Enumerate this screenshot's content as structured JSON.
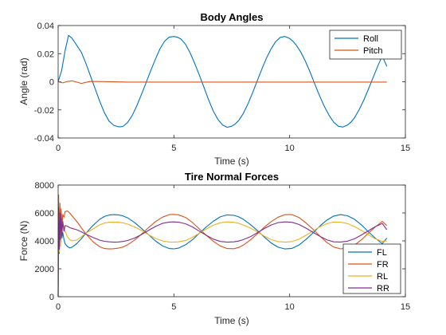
{
  "chart_data": [
    {
      "type": "line",
      "title": "Body Angles",
      "xlabel": "Time (s)",
      "ylabel": "Angle (rad)",
      "xlim": [
        0,
        15
      ],
      "ylim": [
        -0.04,
        0.04
      ],
      "xticks": [
        "0",
        "5",
        "10",
        "15"
      ],
      "yticks": [
        "-0.04",
        "-0.02",
        "0",
        "0.02",
        "0.04"
      ],
      "grid": false,
      "legend": "top-right",
      "series": [
        {
          "name": "Roll",
          "color": "#0072BD",
          "x": [
            0,
            0.15,
            0.3,
            0.45,
            0.6,
            0.8,
            1.0,
            1.2,
            1.4,
            1.6,
            1.8,
            2.0,
            2.2,
            2.4,
            2.6,
            2.7,
            2.8,
            3.0,
            3.2,
            3.4,
            3.6,
            3.8,
            4.0,
            4.2,
            4.4,
            4.6,
            4.8,
            5.0,
            5.15,
            5.3,
            5.5,
            5.7,
            5.9,
            6.1,
            6.3,
            6.5,
            6.7,
            6.9,
            7.1,
            7.3,
            7.5,
            7.65,
            7.8,
            8.0,
            8.2,
            8.4,
            8.6,
            8.8,
            9.0,
            9.2,
            9.4,
            9.6,
            9.8,
            10.0,
            10.15,
            10.3,
            10.5,
            10.7,
            10.9,
            11.1,
            11.3,
            11.5,
            11.7,
            11.9,
            12.1,
            12.3,
            12.5,
            12.65,
            12.8,
            13.0,
            13.2,
            13.4,
            13.6,
            13.8,
            14.0,
            14.2
          ],
          "y": [
            0,
            0.008,
            0.022,
            0.033,
            0.031,
            0.026,
            0.021,
            0.013,
            0.004,
            -0.005,
            -0.014,
            -0.022,
            -0.028,
            -0.031,
            -0.032,
            -0.032,
            -0.0318,
            -0.029,
            -0.024,
            -0.017,
            -0.009,
            -0.0005,
            0.008,
            0.016,
            0.0235,
            0.0289,
            0.0317,
            0.0322,
            0.0317,
            0.0304,
            0.0267,
            0.0206,
            0.013,
            0.0047,
            -0.004,
            -0.0128,
            -0.0207,
            -0.0268,
            -0.0307,
            -0.0324,
            -0.0316,
            -0.03,
            -0.0276,
            -0.0225,
            -0.0158,
            -0.0078,
            0.0007,
            0.009,
            0.0169,
            0.0234,
            0.0286,
            0.0316,
            0.0322,
            0.0308,
            0.0287,
            0.0257,
            0.0206,
            0.0139,
            0.0063,
            -0.0021,
            -0.0103,
            -0.0176,
            -0.0238,
            -0.0287,
            -0.0316,
            -0.0322,
            -0.0308,
            -0.0287,
            -0.0256,
            -0.0199,
            -0.0131,
            -0.0054,
            0.0027,
            0.0109,
            0.0183,
            0.011
          ]
        },
        {
          "name": "Pitch",
          "color": "#D95319",
          "x": [
            0,
            0.2,
            0.4,
            0.6,
            0.8,
            1.0,
            1.2,
            1.4,
            2.0,
            3.0,
            14.2
          ],
          "y": [
            0,
            -0.0008,
            0.0002,
            0.0006,
            -0.0002,
            -0.0012,
            -0.0004,
            0.0002,
            0.0001,
            -0.0002,
            -0.0002
          ]
        }
      ]
    },
    {
      "type": "line",
      "title": "Tire Normal Forces",
      "xlabel": "Time (s)",
      "ylabel": "Force (N)",
      "xlim": [
        0,
        15
      ],
      "ylim": [
        0,
        8000
      ],
      "xticks": [
        "0",
        "5",
        "10",
        "15"
      ],
      "yticks": [
        "0",
        "2000",
        "4000",
        "6000",
        "8000"
      ],
      "grid": false,
      "legend": "bottom-right",
      "series": [
        {
          "name": "FL",
          "color": "#0072BD",
          "x": [
            0,
            0.02,
            0.05,
            0.08,
            0.1,
            0.13,
            0.16,
            0.2,
            0.25,
            0.3,
            0.4,
            0.5,
            0.6,
            0.8,
            1.0,
            1.2,
            1.5,
            1.8,
            2.0,
            2.2,
            2.4,
            2.6,
            2.8,
            3.0,
            3.3,
            3.6,
            3.9,
            4.2,
            4.5,
            4.8,
            5.0,
            5.2,
            5.5,
            5.8,
            6.1,
            6.4,
            6.7,
            7.0,
            7.3,
            7.6,
            7.8,
            8.0,
            8.3,
            8.6,
            8.9,
            9.2,
            9.5,
            9.8,
            10.1,
            10.4,
            10.7,
            11.0,
            11.3,
            11.6,
            11.9,
            12.2,
            12.5,
            12.8,
            13.1,
            13.4,
            13.7,
            14.0,
            14.2
          ],
          "y": [
            0,
            6200,
            3100,
            5600,
            3700,
            5200,
            4200,
            4600,
            4100,
            3800,
            3600,
            3500,
            3550,
            3800,
            4150,
            4550,
            5100,
            5550,
            5750,
            5850,
            5880,
            5860,
            5790,
            5650,
            5320,
            4900,
            4450,
            4000,
            3650,
            3450,
            3430,
            3480,
            3720,
            4080,
            4550,
            5000,
            5400,
            5720,
            5860,
            5830,
            5720,
            5550,
            5180,
            4750,
            4280,
            3850,
            3550,
            3420,
            3460,
            3700,
            4100,
            4550,
            5050,
            5480,
            5780,
            5880,
            5800,
            5550,
            5150,
            4650,
            4200,
            3800,
            4200
          ]
        },
        {
          "name": "FR",
          "color": "#D95319",
          "x": [
            0,
            0.02,
            0.05,
            0.08,
            0.1,
            0.13,
            0.16,
            0.2,
            0.25,
            0.3,
            0.4,
            0.5,
            0.6,
            0.8,
            1.0,
            1.2,
            1.5,
            1.8,
            2.0,
            2.2,
            2.4,
            2.6,
            2.8,
            3.0,
            3.3,
            3.6,
            3.9,
            4.2,
            4.5,
            4.8,
            5.0,
            5.2,
            5.5,
            5.8,
            6.1,
            6.4,
            6.7,
            7.0,
            7.3,
            7.6,
            7.8,
            8.0,
            8.3,
            8.6,
            8.9,
            9.2,
            9.5,
            9.8,
            10.1,
            10.4,
            10.7,
            11.0,
            11.3,
            11.6,
            11.9,
            12.2,
            12.5,
            12.8,
            13.1,
            13.4,
            13.7,
            14.0,
            14.2
          ],
          "y": [
            0,
            7300,
            3600,
            6700,
            4300,
            6300,
            5000,
            5900,
            5700,
            6100,
            6150,
            6000,
            5800,
            5400,
            4950,
            4500,
            3950,
            3580,
            3450,
            3420,
            3440,
            3480,
            3560,
            3720,
            4050,
            4480,
            4950,
            5380,
            5700,
            5880,
            5900,
            5870,
            5680,
            5320,
            4850,
            4400,
            3980,
            3640,
            3450,
            3440,
            3530,
            3700,
            4060,
            4500,
            4980,
            5380,
            5700,
            5880,
            5880,
            5680,
            5300,
            4850,
            4350,
            3900,
            3560,
            3430,
            3480,
            3700,
            4080,
            4550,
            5000,
            5400,
            5100
          ]
        },
        {
          "name": "RL",
          "color": "#EDB120",
          "x": [
            0,
            0.02,
            0.05,
            0.08,
            0.1,
            0.13,
            0.16,
            0.2,
            0.25,
            0.3,
            0.4,
            0.5,
            0.6,
            0.8,
            1.0,
            1.2,
            1.5,
            1.8,
            2.0,
            2.2,
            2.4,
            2.6,
            2.8,
            3.0,
            3.3,
            3.6,
            3.9,
            4.2,
            4.5,
            4.8,
            5.0,
            5.2,
            5.5,
            5.8,
            6.1,
            6.4,
            6.7,
            7.0,
            7.3,
            7.6,
            7.8,
            8.0,
            8.3,
            8.6,
            8.9,
            9.2,
            9.5,
            9.8,
            10.1,
            10.4,
            10.7,
            11.0,
            11.3,
            11.6,
            11.9,
            12.2,
            12.5,
            12.8,
            13.1,
            13.4,
            13.7,
            14.0,
            14.2
          ],
          "y": [
            0,
            5400,
            3200,
            5800,
            3600,
            5700,
            4800,
            5300,
            5000,
            4700,
            4300,
            4100,
            4000,
            4050,
            4300,
            4550,
            4850,
            5150,
            5280,
            5330,
            5350,
            5340,
            5290,
            5200,
            5000,
            4750,
            4450,
            4180,
            4000,
            3920,
            3910,
            3930,
            4020,
            4250,
            4550,
            4850,
            5120,
            5300,
            5360,
            5330,
            5260,
            5140,
            4920,
            4650,
            4350,
            4090,
            3950,
            3910,
            3950,
            4120,
            4400,
            4700,
            5000,
            5230,
            5350,
            5340,
            5240,
            5030,
            4750,
            4440,
            4150,
            3960,
            4000
          ]
        },
        {
          "name": "RR",
          "color": "#7E2F8E",
          "x": [
            0,
            0.02,
            0.05,
            0.08,
            0.1,
            0.13,
            0.16,
            0.2,
            0.25,
            0.3,
            0.4,
            0.5,
            0.6,
            0.8,
            1.0,
            1.2,
            1.5,
            1.8,
            2.0,
            2.2,
            2.4,
            2.6,
            2.8,
            3.0,
            3.3,
            3.6,
            3.9,
            4.2,
            4.5,
            4.8,
            5.0,
            5.2,
            5.5,
            5.8,
            6.1,
            6.4,
            6.7,
            7.0,
            7.3,
            7.6,
            7.8,
            8.0,
            8.3,
            8.6,
            8.9,
            9.2,
            9.5,
            9.8,
            10.1,
            10.4,
            10.7,
            11.0,
            11.3,
            11.6,
            11.9,
            12.2,
            12.5,
            12.8,
            13.1,
            13.4,
            13.7,
            14.0,
            14.2
          ],
          "y": [
            0,
            6400,
            3400,
            6000,
            4100,
            5900,
            4400,
            5400,
            4700,
            5100,
            5050,
            4950,
            4900,
            4800,
            4650,
            4480,
            4250,
            4050,
            3970,
            3930,
            3910,
            3920,
            3960,
            4030,
            4200,
            4450,
            4750,
            5030,
            5250,
            5350,
            5360,
            5340,
            5230,
            5000,
            4700,
            4400,
            4130,
            3960,
            3910,
            3930,
            3990,
            4090,
            4300,
            4580,
            4880,
            5140,
            5310,
            5360,
            5330,
            5180,
            4920,
            4620,
            4330,
            4080,
            3930,
            3920,
            3980,
            4150,
            4420,
            4720,
            5020,
            5250,
            4800
          ]
        }
      ]
    }
  ]
}
